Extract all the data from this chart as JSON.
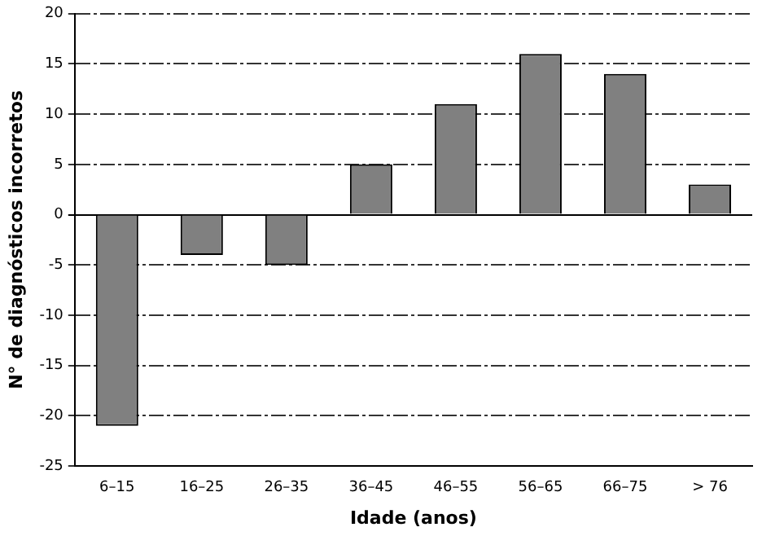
{
  "chart_data": {
    "type": "bar",
    "xlabel": "Idade (anos)",
    "ylabel": "N° de diagnósticos incorretos",
    "categories": [
      "6–15",
      "16–25",
      "26–35",
      "36–45",
      "46–55",
      "56–65",
      "66–75",
      "> 76"
    ],
    "values": [
      -21,
      -4,
      -5,
      5,
      11,
      16,
      14,
      3
    ],
    "color": "#808080",
    "ylim": [
      -25,
      20
    ],
    "yticks": [
      -25,
      -20,
      -15,
      -10,
      -5,
      0,
      5,
      10,
      15,
      20
    ],
    "grid": "y",
    "legend": false
  }
}
